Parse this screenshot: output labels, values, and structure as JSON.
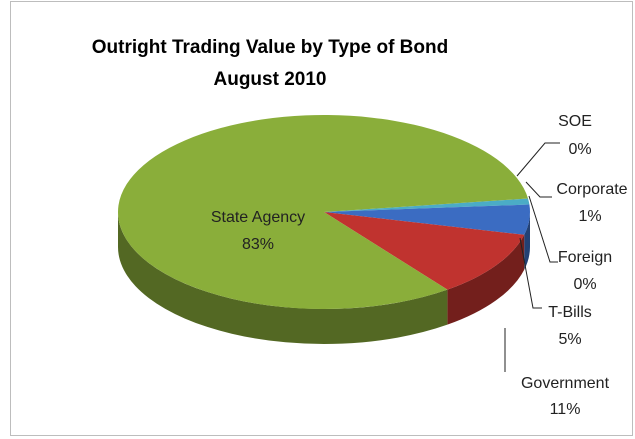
{
  "chart_data": {
    "type": "pie3d",
    "title": "Outright Trading Value by Type of Bond",
    "subtitle": "August 2010",
    "categories": [
      "SOE",
      "Corporate",
      "Foreign",
      "T-Bills",
      "Government",
      "State Agency"
    ],
    "values": [
      0,
      1,
      0,
      5,
      11,
      83
    ],
    "value_labels": [
      "0%",
      "1%",
      "0%",
      "5%",
      "11%",
      "83%"
    ],
    "colors": [
      "#f79646",
      "#4bacc6",
      "#8064a2",
      "#3b6cc2",
      "#c0332f",
      "#8aae3a"
    ]
  }
}
